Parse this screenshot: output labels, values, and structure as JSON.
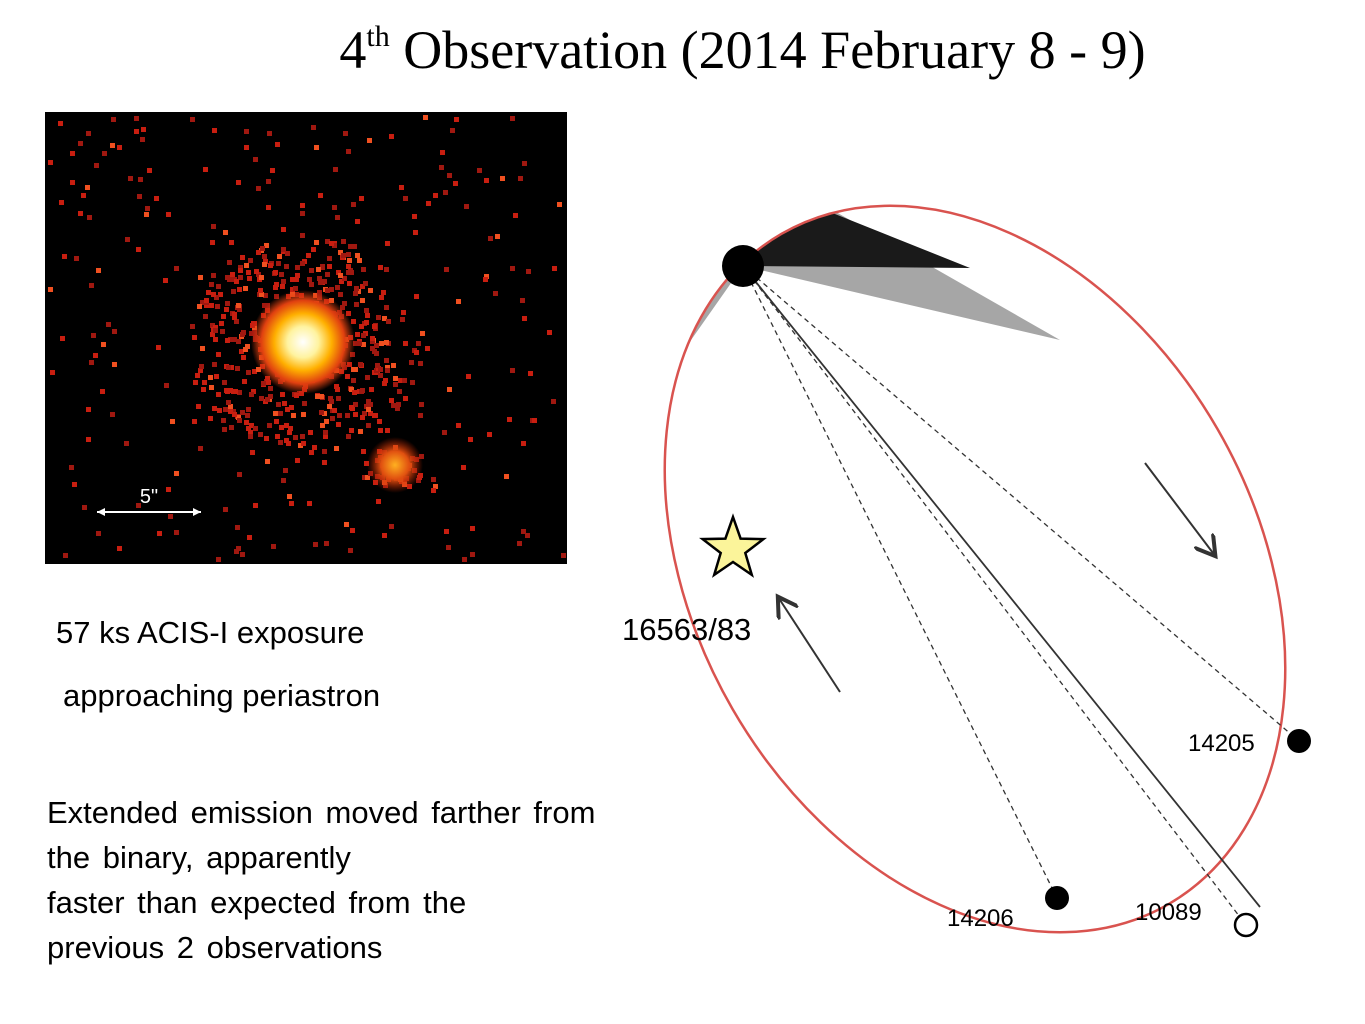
{
  "title": {
    "prefix": "4",
    "sup": "th",
    "rest": " Observation (2014 February 8 - 9)"
  },
  "image": {
    "scale_label": "5\""
  },
  "exposure": "57 ks ACIS-I exposure",
  "phase": "approaching  periastron",
  "description": [
    "Extended emission moved farther from",
    "the binary, apparently",
    "faster than expected from the",
    "previous 2 observations"
  ],
  "orbit": {
    "current_obs": "16563/83",
    "points": [
      "14205",
      "14206",
      "10089"
    ]
  },
  "colors": {
    "orbit": "#d9534f",
    "star_fill": "#fbf49a",
    "shadow_dark": "#1a1a1a",
    "shadow_gray": "#a6a6a6"
  }
}
